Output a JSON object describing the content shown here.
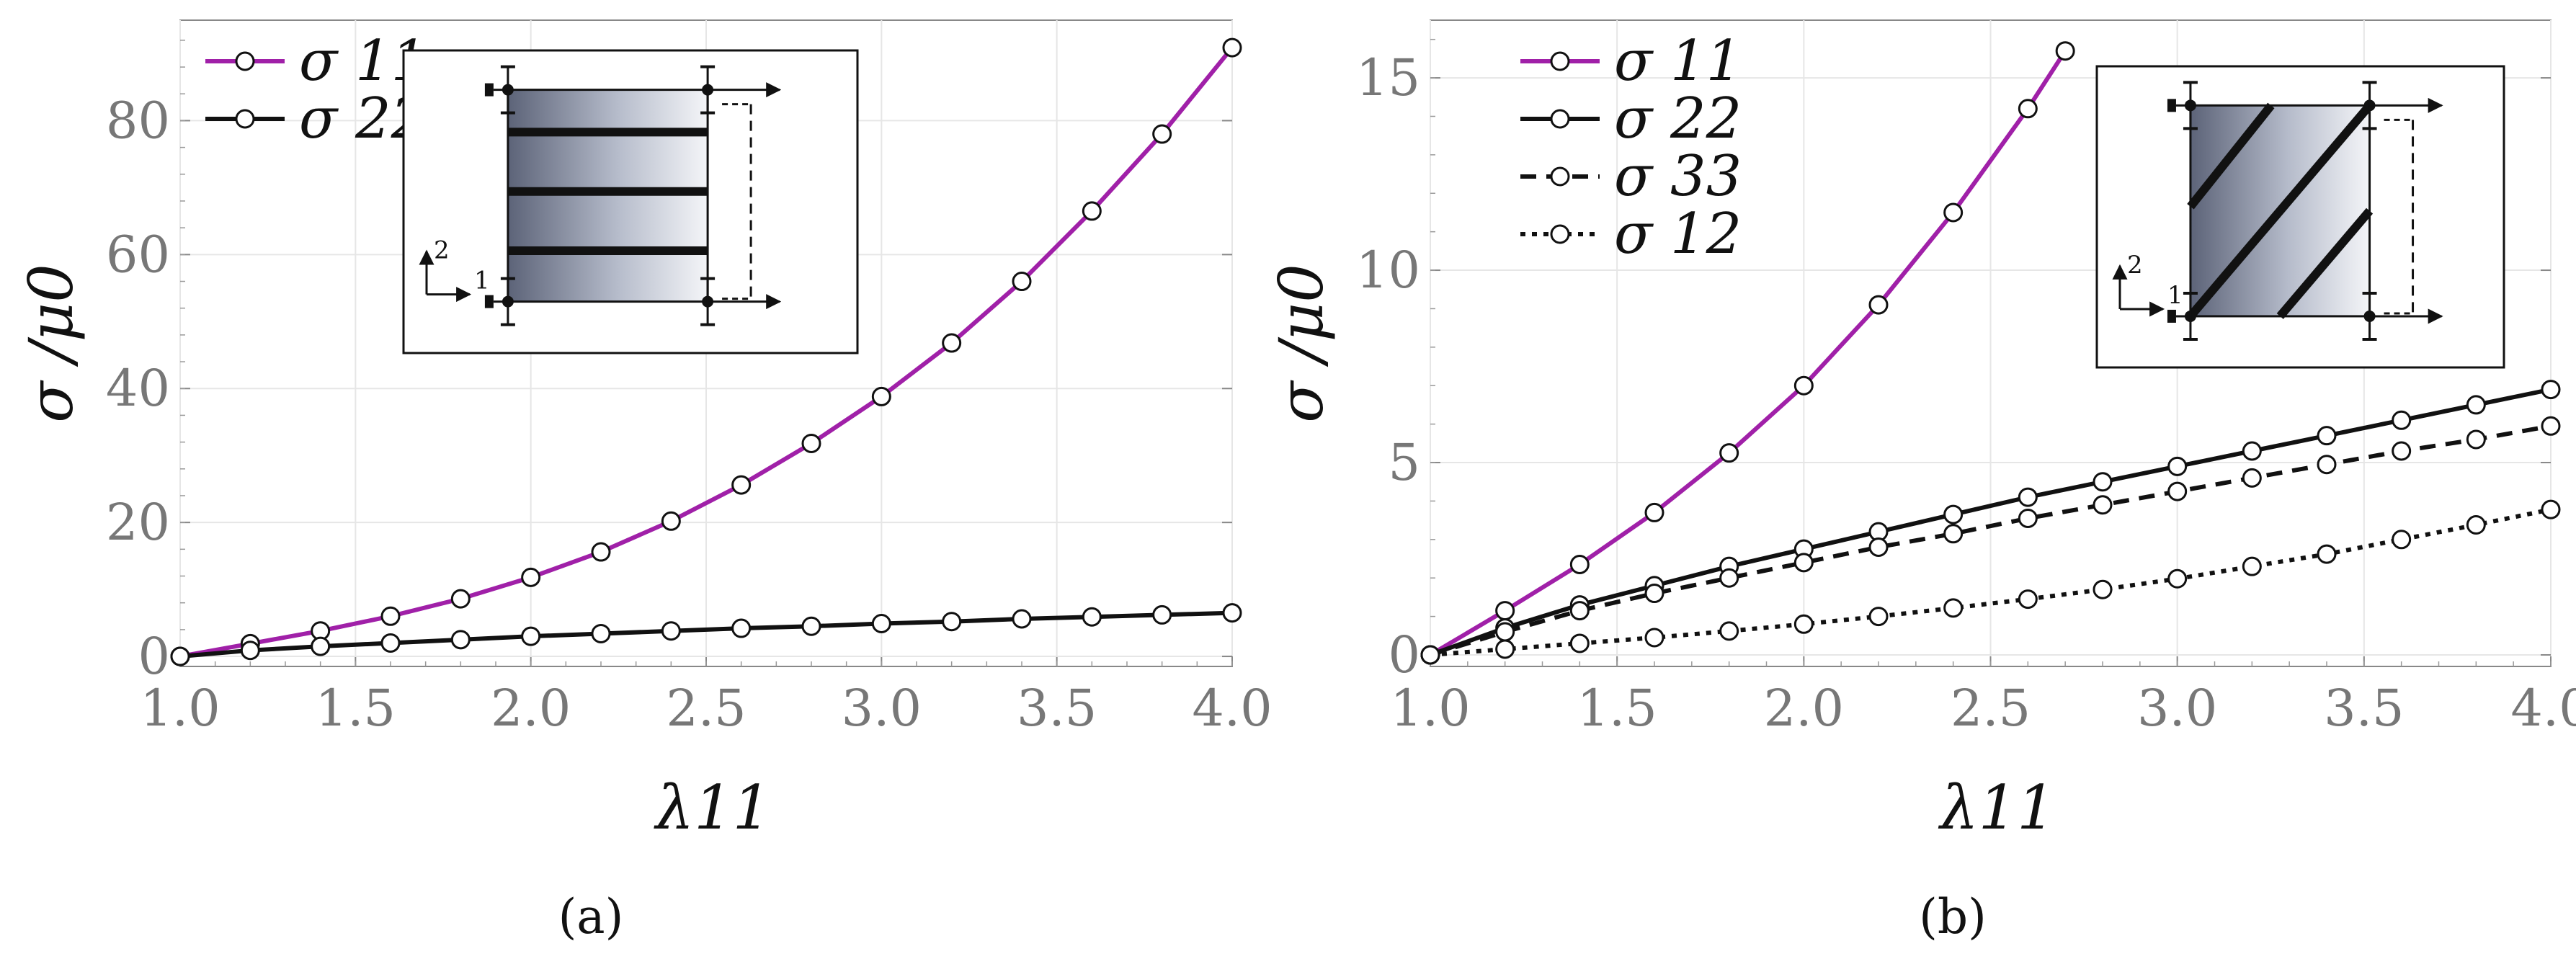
{
  "chart_data": [
    {
      "type": "line",
      "caption": "(a)",
      "xlabel": "λ11",
      "ylabel": "σ /μ0",
      "xlim": [
        1.0,
        4.0
      ],
      "ylim": [
        -1.5,
        95
      ],
      "xticks": [
        "1.0",
        "1.5",
        "2.0",
        "2.5",
        "3.0",
        "3.5",
        "4.0"
      ],
      "yticks": [
        "0",
        "20",
        "40",
        "60",
        "80"
      ],
      "legend_position": "top-left",
      "x": [
        1.0,
        1.2,
        1.4,
        1.6,
        1.8,
        2.0,
        2.2,
        2.4,
        2.6,
        2.8,
        3.0,
        3.2,
        3.4,
        3.6,
        3.8,
        4.0
      ],
      "series": [
        {
          "name": "σ 11",
          "color": "#a020a8",
          "style": "solid",
          "values": [
            0,
            1.9,
            3.8,
            6.0,
            8.6,
            11.8,
            15.6,
            20.2,
            25.6,
            31.8,
            38.8,
            46.8,
            56.0,
            66.5,
            78.0,
            90.9
          ]
        },
        {
          "name": "σ 22",
          "color": "#111111",
          "style": "solid",
          "values": [
            0,
            0.9,
            1.5,
            2.0,
            2.5,
            3.0,
            3.4,
            3.8,
            4.2,
            4.5,
            4.9,
            5.2,
            5.6,
            5.9,
            6.2,
            6.5
          ]
        }
      ],
      "inset": {
        "axis_label_1": "1",
        "axis_label_2": "2",
        "fiber_orientation": "horizontal"
      }
    },
    {
      "type": "line",
      "caption": "(b)",
      "xlabel": "λ11",
      "ylabel": "σ /μ0",
      "xlim": [
        1.0,
        4.0
      ],
      "ylim": [
        -0.3,
        16.5
      ],
      "xticks": [
        "1.0",
        "1.5",
        "2.0",
        "2.5",
        "3.0",
        "3.5",
        "4.0"
      ],
      "yticks": [
        "0",
        "5",
        "10",
        "15"
      ],
      "legend_position": "top-left",
      "x": [
        1.0,
        1.2,
        1.4,
        1.6,
        1.8,
        2.0,
        2.2,
        2.4,
        2.6,
        2.8,
        3.0,
        3.2,
        3.4,
        3.6,
        3.8,
        4.0
      ],
      "series": [
        {
          "name": "σ 11",
          "color": "#a020a8",
          "style": "solid",
          "x": [
            1.0,
            1.2,
            1.4,
            1.6,
            1.8,
            2.0,
            2.2,
            2.4,
            2.6,
            2.7
          ],
          "values": [
            0,
            1.15,
            2.35,
            3.7,
            5.25,
            7.0,
            9.1,
            11.5,
            14.2,
            15.7
          ]
        },
        {
          "name": "σ 22",
          "color": "#111111",
          "style": "solid",
          "values": [
            0,
            0.7,
            1.3,
            1.8,
            2.3,
            2.75,
            3.2,
            3.65,
            4.1,
            4.5,
            4.9,
            5.3,
            5.7,
            6.1,
            6.5,
            6.9
          ]
        },
        {
          "name": "σ 33",
          "color": "#111111",
          "style": "dashed",
          "values": [
            0,
            0.6,
            1.15,
            1.6,
            2.0,
            2.4,
            2.8,
            3.15,
            3.55,
            3.9,
            4.25,
            4.6,
            4.95,
            5.3,
            5.6,
            5.95
          ]
        },
        {
          "name": "σ 12",
          "color": "#111111",
          "style": "dotted",
          "values": [
            0,
            0.15,
            0.3,
            0.45,
            0.62,
            0.8,
            1.0,
            1.22,
            1.45,
            1.7,
            1.98,
            2.3,
            2.62,
            3.0,
            3.38,
            3.78
          ]
        }
      ],
      "inset": {
        "axis_label_1": "1",
        "axis_label_2": "2",
        "fiber_orientation": "diagonal"
      }
    }
  ]
}
